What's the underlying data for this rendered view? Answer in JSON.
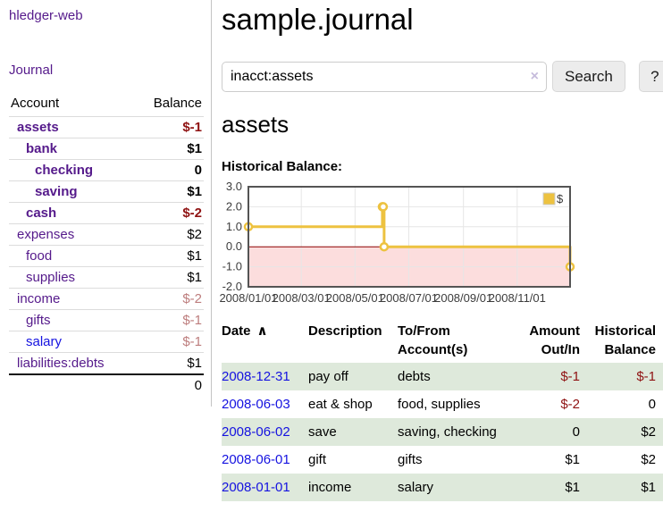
{
  "app_title": "hledger-web",
  "nav": {
    "journal": "Journal"
  },
  "page": {
    "title": "sample.journal",
    "account_title": "assets",
    "chart_label": "Historical Balance:"
  },
  "search": {
    "value": "inacct:assets",
    "clear": "×",
    "search_button": "Search",
    "help_button": "?"
  },
  "colors": {
    "accent_gold": "#edc240",
    "negative_strong": "#8f1212",
    "negative_muted": "#bd7d7d",
    "link_visited": "#551a8b",
    "link_blue": "#1512e0",
    "row_stripe": "#dee9db"
  },
  "sidebar_accounts": {
    "headers": [
      "Account",
      "Balance"
    ],
    "rows": [
      {
        "account": "assets",
        "balance": "$-1",
        "indent": 1,
        "bold": true,
        "neg": "strong",
        "link": "visited"
      },
      {
        "account": "bank",
        "balance": "$1",
        "indent": 2,
        "bold": true,
        "neg": null,
        "link": "visited"
      },
      {
        "account": "checking",
        "balance": "0",
        "indent": 3,
        "bold": true,
        "neg": null,
        "link": "visited"
      },
      {
        "account": "saving",
        "balance": "$1",
        "indent": 3,
        "bold": true,
        "neg": null,
        "link": "visited"
      },
      {
        "account": "cash",
        "balance": "$-2",
        "indent": 2,
        "bold": true,
        "neg": "strong",
        "link": "visited"
      },
      {
        "account": "expenses",
        "balance": "$2",
        "indent": 1,
        "bold": false,
        "neg": null,
        "link": "visited"
      },
      {
        "account": "food",
        "balance": "$1",
        "indent": 2,
        "bold": false,
        "neg": null,
        "link": "visited"
      },
      {
        "account": "supplies",
        "balance": "$1",
        "indent": 2,
        "bold": false,
        "neg": null,
        "link": "visited"
      },
      {
        "account": "income",
        "balance": "$-2",
        "indent": 1,
        "bold": false,
        "neg": "muted",
        "link": "visited"
      },
      {
        "account": "gifts",
        "balance": "$-1",
        "indent": 2,
        "bold": false,
        "neg": "muted",
        "link": "visited"
      },
      {
        "account": "salary",
        "balance": "$-1",
        "indent": 2,
        "bold": false,
        "neg": "muted",
        "link": "blue"
      },
      {
        "account": "liabilities:debts",
        "balance": "$1",
        "indent": 1,
        "bold": false,
        "neg": null,
        "link": "visited"
      }
    ],
    "total": "0"
  },
  "chart_data": {
    "type": "line",
    "step": true,
    "title": "",
    "xlabel": "",
    "ylabel": "",
    "series": [
      {
        "name": "$",
        "color": "#edc240",
        "points": [
          [
            "2008-01-01",
            1
          ],
          [
            "2008-06-01",
            2
          ],
          [
            "2008-06-02",
            2
          ],
          [
            "2008-06-03",
            0
          ],
          [
            "2008-12-31",
            -1
          ]
        ]
      }
    ],
    "xlim": [
      "2008-01-01",
      "2008-12-31"
    ],
    "ylim": [
      -2,
      3
    ],
    "x_ticks": [
      [
        "2008-01-01",
        "2008/01/01"
      ],
      [
        "2008-03-01",
        "2008/03/01"
      ],
      [
        "2008-05-01",
        "2008/05/01"
      ],
      [
        "2008-07-01",
        "2008/07/01"
      ],
      [
        "2008-09-01",
        "2008/09/01"
      ],
      [
        "2008-11-01",
        "2008/11/01"
      ]
    ],
    "y_ticks": [
      3,
      2,
      1,
      0,
      -1,
      -2
    ],
    "legend": {
      "label": "$",
      "position": "top-right"
    },
    "grid": true,
    "grid_color": "#e6e6e6",
    "border_color": "#545454",
    "zero_line_color": "#8b0000",
    "negative_region_fill": "#fcdddd"
  },
  "transactions": {
    "headers": [
      {
        "lines": [
          "Date"
        ],
        "sort": "∧",
        "align": "left"
      },
      {
        "lines": [
          "Description"
        ],
        "align": "left"
      },
      {
        "lines": [
          "To/From",
          "Account(s)"
        ],
        "align": "left"
      },
      {
        "lines": [
          "Amount",
          "Out/In"
        ],
        "align": "right"
      },
      {
        "lines": [
          "Historical",
          "Balance"
        ],
        "align": "right"
      }
    ],
    "rows": [
      {
        "date": "2008-12-31",
        "description": "pay off",
        "accounts": "debts",
        "amount": "$-1",
        "amount_neg": true,
        "balance": "$-1",
        "balance_neg": true
      },
      {
        "date": "2008-06-03",
        "description": "eat & shop",
        "accounts": "food, supplies",
        "amount": "$-2",
        "amount_neg": true,
        "balance": "0",
        "balance_neg": false
      },
      {
        "date": "2008-06-02",
        "description": "save",
        "accounts": "saving, checking",
        "amount": "0",
        "amount_neg": false,
        "balance": "$2",
        "balance_neg": false
      },
      {
        "date": "2008-06-01",
        "description": "gift",
        "accounts": "gifts",
        "amount": "$1",
        "amount_neg": false,
        "balance": "$2",
        "balance_neg": false
      },
      {
        "date": "2008-01-01",
        "description": "income",
        "accounts": "salary",
        "amount": "$1",
        "amount_neg": false,
        "balance": "$1",
        "balance_neg": false
      }
    ]
  }
}
